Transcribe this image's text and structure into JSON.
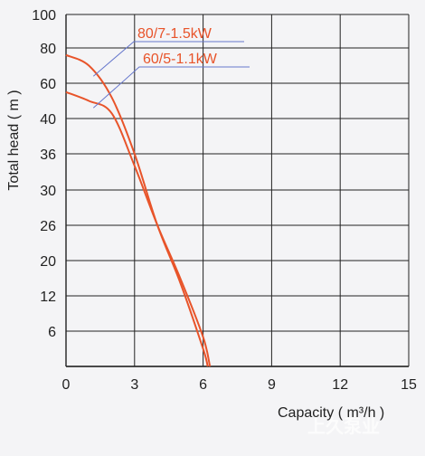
{
  "chart_data": {
    "type": "line",
    "xlabel": "Capacity ( m³/h )",
    "ylabel": "Total head ( m )",
    "xlim": [
      0,
      15
    ],
    "x_ticks": [
      "0",
      "3",
      "6",
      "9",
      "12",
      "15"
    ],
    "y_ticks": [
      "6",
      "12",
      "20",
      "26",
      "30",
      "36",
      "40",
      "60",
      "80",
      "100"
    ],
    "grid": true,
    "series": [
      {
        "name": "80/7-1.5kW",
        "color": "#e8542a",
        "points": [
          [
            0,
            76
          ],
          [
            1,
            70
          ],
          [
            2,
            52
          ],
          [
            3,
            36
          ],
          [
            4,
            26
          ],
          [
            5,
            15
          ],
          [
            6,
            3
          ],
          [
            6.2,
            0
          ]
        ]
      },
      {
        "name": "60/5-1.1kW",
        "color": "#e8542a",
        "points": [
          [
            0,
            55
          ],
          [
            1,
            50
          ],
          [
            2,
            43
          ],
          [
            3,
            34
          ],
          [
            4,
            26
          ],
          [
            5,
            16
          ],
          [
            6,
            5
          ],
          [
            6.3,
            0
          ]
        ]
      }
    ],
    "annotation_color": "#6677cc"
  },
  "watermark": "上久泵业"
}
